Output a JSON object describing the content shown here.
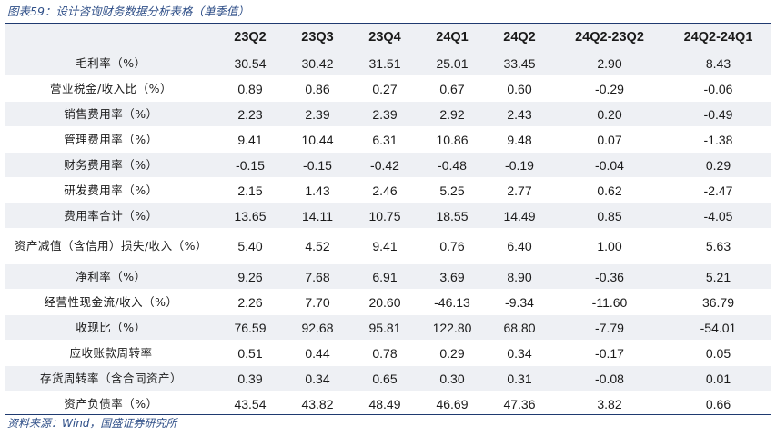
{
  "caption": "图表59：设计咨询财务数据分析表格（单季值）",
  "source": "资料来源：Wind，国盛证券研究所",
  "columns": [
    "23Q2",
    "23Q3",
    "23Q4",
    "24Q1",
    "24Q2",
    "24Q2-23Q2",
    "24Q2-24Q1"
  ],
  "rows": [
    {
      "label": "毛利率（%）",
      "values": [
        "30.54",
        "30.42",
        "31.51",
        "25.01",
        "33.45",
        "2.90",
        "8.43"
      ]
    },
    {
      "label": "营业税金/收入比（%）",
      "values": [
        "0.89",
        "0.86",
        "0.27",
        "0.67",
        "0.60",
        "-0.29",
        "-0.06"
      ]
    },
    {
      "label": "销售费用率（%）",
      "values": [
        "2.23",
        "2.39",
        "2.39",
        "2.92",
        "2.43",
        "0.20",
        "-0.49"
      ]
    },
    {
      "label": "管理费用率（%）",
      "values": [
        "9.41",
        "10.44",
        "6.31",
        "10.86",
        "9.48",
        "0.07",
        "-1.38"
      ]
    },
    {
      "label": "财务费用率（%）",
      "values": [
        "-0.15",
        "-0.15",
        "-0.42",
        "-0.48",
        "-0.19",
        "-0.04",
        "0.29"
      ]
    },
    {
      "label": "研发费用率（%）",
      "values": [
        "2.15",
        "1.43",
        "2.46",
        "5.25",
        "2.77",
        "0.62",
        "-2.47"
      ]
    },
    {
      "label": "费用率合计（%）",
      "values": [
        "13.65",
        "14.11",
        "10.75",
        "18.55",
        "14.49",
        "0.85",
        "-4.05"
      ]
    },
    {
      "label": "资产减值（含信用）损失/收入（%）",
      "values": [
        "5.40",
        "4.52",
        "9.41",
        "0.76",
        "6.40",
        "1.00",
        "5.63"
      ]
    },
    {
      "label": "净利率（%）",
      "values": [
        "9.26",
        "7.68",
        "6.91",
        "3.69",
        "8.90",
        "-0.36",
        "5.21"
      ]
    },
    {
      "label": "经营性现金流/收入（%）",
      "values": [
        "2.26",
        "7.70",
        "20.60",
        "-46.13",
        "-9.34",
        "-11.60",
        "36.79"
      ]
    },
    {
      "label": "收现比（%）",
      "values": [
        "76.59",
        "92.68",
        "95.81",
        "122.80",
        "68.80",
        "-7.79",
        "-54.01"
      ]
    },
    {
      "label": "应收账款周转率",
      "values": [
        "0.51",
        "0.44",
        "0.78",
        "0.29",
        "0.34",
        "-0.17",
        "0.05"
      ]
    },
    {
      "label": "存货周转率（含合同资产）",
      "values": [
        "0.39",
        "0.34",
        "0.65",
        "0.30",
        "0.31",
        "-0.08",
        "0.01"
      ]
    },
    {
      "label": "资产负债率（%）",
      "values": [
        "43.54",
        "43.82",
        "48.49",
        "46.69",
        "47.36",
        "3.82",
        "0.66"
      ]
    }
  ]
}
